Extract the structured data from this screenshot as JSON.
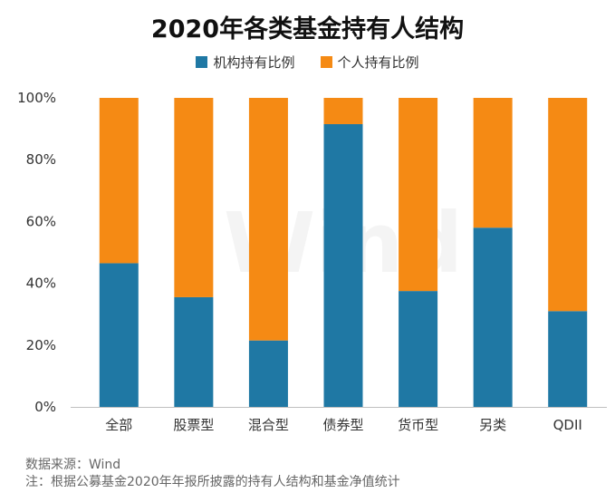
{
  "title": "2020年各类基金持有人结构",
  "watermark": "Wind",
  "chart_data": {
    "type": "bar",
    "stacked": true,
    "title": "2020年各类基金持有人结构",
    "categories": [
      "全部",
      "股票型",
      "混合型",
      "债券型",
      "货币型",
      "另类",
      "QDII"
    ],
    "series": [
      {
        "name": "机构持有比例",
        "color": "#1f78a4",
        "values": [
          46.5,
          35.5,
          21.5,
          91.5,
          37.5,
          58.0,
          31.0
        ]
      },
      {
        "name": "个人持有比例",
        "color": "#f58a14",
        "values": [
          53.5,
          64.5,
          78.5,
          8.5,
          62.5,
          42.0,
          69.0
        ]
      }
    ],
    "ylim": [
      0,
      100
    ],
    "yticks": [
      "0%",
      "20%",
      "40%",
      "60%",
      "80%",
      "100%"
    ],
    "ytick_values": [
      0,
      20,
      40,
      60,
      80,
      100
    ],
    "legend_position": "top-center",
    "grid": false
  },
  "footnotes": {
    "source": "数据来源：Wind",
    "note": "注：根据公募基金2020年年报所披露的持有人结构和基金净值统计"
  }
}
